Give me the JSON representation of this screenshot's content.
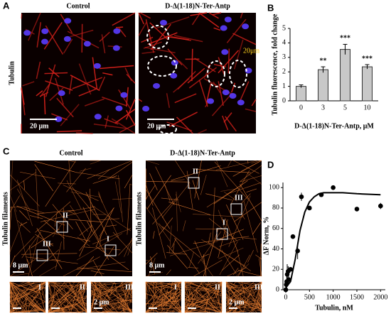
{
  "panel_A": {
    "label": "A",
    "control": "Control",
    "treated": "D-Δ(1-18)N-Ter-Antp",
    "row_label": "Tubulin",
    "scale_bar": "20 μm",
    "inset_scale": "20μm"
  },
  "panel_C": {
    "label": "C",
    "control": "Control",
    "treated": "D-Δ(1-18)N-Ter-Antp",
    "row_label": "Tubulin filaments",
    "scale_bar": "8 μm",
    "inset_scale": "2 μm",
    "regions": [
      "I",
      "II",
      "III"
    ]
  },
  "chart_data": [
    {
      "type": "bar",
      "panel": "B",
      "y_label": "Tubulin fluorescence, fold change",
      "x_label": "D-Δ(1-18)N-Ter-Antp, μM",
      "categories": [
        "0",
        "3",
        "5",
        "10"
      ],
      "values": [
        1.0,
        2.15,
        3.55,
        2.35
      ],
      "errors": [
        0.1,
        0.2,
        0.35,
        0.15
      ],
      "annotations": [
        null,
        "**",
        "***",
        "***"
      ],
      "color": "#c8c8c8",
      "ylim": [
        0,
        5
      ],
      "yticks": [
        0,
        1,
        2,
        3,
        4,
        5
      ]
    },
    {
      "type": "scatter",
      "panel": "D",
      "y_label": "ΔF Norm, %",
      "x_label": "Tubulin, nM",
      "x": [
        0,
        10,
        20,
        30,
        50,
        60,
        100,
        150,
        250,
        330,
        500,
        750,
        1000,
        1500,
        2000
      ],
      "values": [
        0,
        5,
        8,
        15,
        18,
        10,
        20,
        52,
        38,
        91,
        80,
        93,
        100,
        79,
        82
      ],
      "errors": [
        3,
        5,
        8,
        10,
        5,
        5,
        null,
        null,
        8,
        4,
        null,
        null,
        null,
        null,
        3
      ],
      "fit_x": [
        0,
        100,
        200,
        300,
        400,
        500,
        600,
        700,
        800,
        1000,
        1200,
        1500,
        2000
      ],
      "fit_y": [
        2,
        8,
        30,
        58,
        76,
        86,
        91,
        94,
        95,
        95,
        95,
        94,
        93
      ],
      "color": "#000000",
      "xlim": [
        -60,
        2100
      ],
      "ylim": [
        0,
        105
      ],
      "xticks": [
        0,
        500,
        1000,
        1500,
        2000
      ],
      "yticks": [
        0,
        20,
        40,
        60,
        80,
        100
      ]
    }
  ]
}
